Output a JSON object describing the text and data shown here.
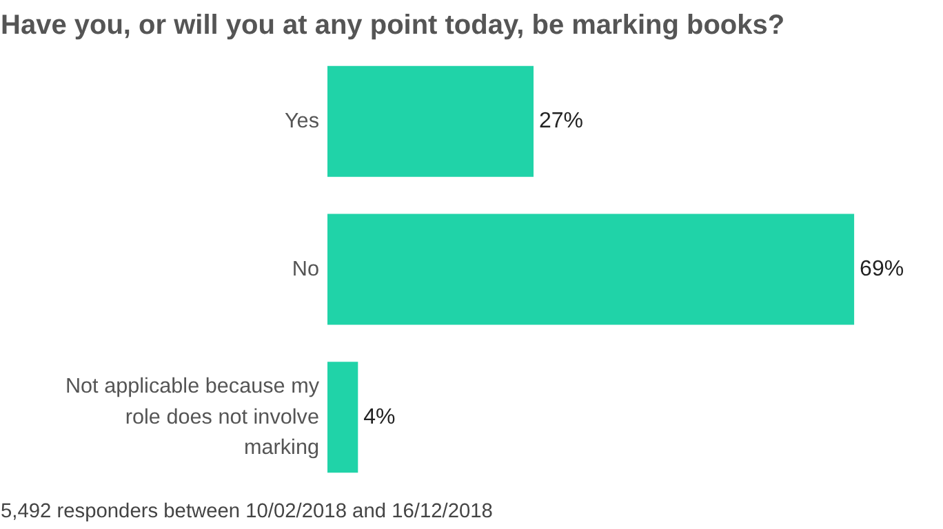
{
  "chart_data": {
    "type": "bar",
    "orientation": "horizontal",
    "title": "Have you, or will you at any point today, be marking books?",
    "categories": [
      "Yes",
      "No",
      "Not applicable because my role does not involve marking"
    ],
    "values": [
      27,
      69,
      4
    ],
    "value_labels": [
      "27%",
      "69%",
      "4%"
    ],
    "color": "#20d3a8",
    "grid": false,
    "annotations": [
      "5,492 responders between 10/02/2018 and 16/12/2018"
    ]
  }
}
